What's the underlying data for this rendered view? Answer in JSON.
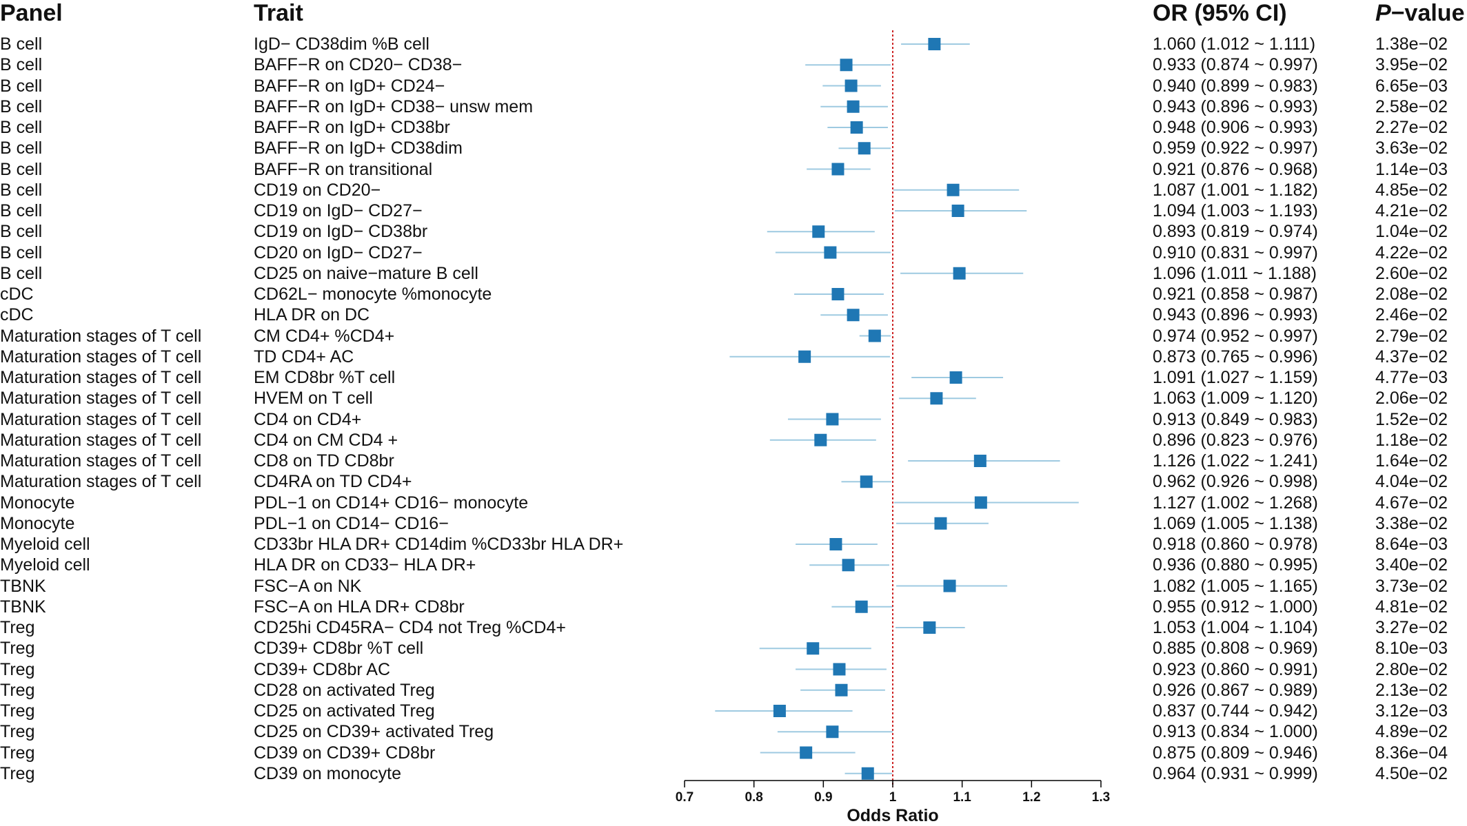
{
  "headers": {
    "panel": "Panel",
    "trait": "Trait",
    "or_ci": "OR (95% CI)",
    "pvalue_p": "P",
    "pvalue_rest": "−value"
  },
  "colors": {
    "marker": "#1f77b4",
    "ci_line": "#9ecae1",
    "reference_line": "#cc2222",
    "axis": "#000000"
  },
  "chart_data": {
    "type": "forest",
    "xlabel": "Odds Ratio",
    "xlim": [
      0.7,
      1.3
    ],
    "xticks": [
      "0.7",
      "0.8",
      "0.9",
      "1",
      "1.1",
      "1.2",
      "1.3"
    ],
    "xtick_values": [
      0.7,
      0.8,
      0.9,
      1.0,
      1.1,
      1.2,
      1.3
    ],
    "reference_value": 1,
    "rows": [
      {
        "panel": "B cell",
        "trait": "IgD− CD38dim %B cell",
        "or": 1.06,
        "lo": 1.012,
        "hi": 1.111,
        "or_text": "1.060 (1.012 ~ 1.111)",
        "p": "1.38e−02"
      },
      {
        "panel": "B cell",
        "trait": "BAFF−R on CD20− CD38−",
        "or": 0.933,
        "lo": 0.874,
        "hi": 0.997,
        "or_text": "0.933 (0.874 ~ 0.997)",
        "p": "3.95e−02"
      },
      {
        "panel": "B cell",
        "trait": "BAFF−R on IgD+ CD24−",
        "or": 0.94,
        "lo": 0.899,
        "hi": 0.983,
        "or_text": "0.940 (0.899 ~ 0.983)",
        "p": "6.65e−03"
      },
      {
        "panel": "B cell",
        "trait": "BAFF−R on IgD+ CD38− unsw mem",
        "or": 0.943,
        "lo": 0.896,
        "hi": 0.993,
        "or_text": "0.943 (0.896 ~ 0.993)",
        "p": "2.58e−02"
      },
      {
        "panel": "B cell",
        "trait": "BAFF−R on IgD+ CD38br",
        "or": 0.948,
        "lo": 0.906,
        "hi": 0.993,
        "or_text": "0.948 (0.906 ~ 0.993)",
        "p": "2.27e−02"
      },
      {
        "panel": "B cell",
        "trait": "BAFF−R on IgD+ CD38dim",
        "or": 0.959,
        "lo": 0.922,
        "hi": 0.997,
        "or_text": "0.959 (0.922 ~ 0.997)",
        "p": "3.63e−02"
      },
      {
        "panel": "B cell",
        "trait": "BAFF−R on transitional",
        "or": 0.921,
        "lo": 0.876,
        "hi": 0.968,
        "or_text": "0.921 (0.876 ~ 0.968)",
        "p": "1.14e−03"
      },
      {
        "panel": "B cell",
        "trait": "CD19 on CD20−",
        "or": 1.087,
        "lo": 1.001,
        "hi": 1.182,
        "or_text": "1.087 (1.001 ~ 1.182)",
        "p": "4.85e−02"
      },
      {
        "panel": "B cell",
        "trait": "CD19 on IgD− CD27−",
        "or": 1.094,
        "lo": 1.003,
        "hi": 1.193,
        "or_text": "1.094 (1.003 ~ 1.193)",
        "p": "4.21e−02"
      },
      {
        "panel": "B cell",
        "trait": "CD19 on IgD− CD38br",
        "or": 0.893,
        "lo": 0.819,
        "hi": 0.974,
        "or_text": "0.893 (0.819 ~ 0.974)",
        "p": "1.04e−02"
      },
      {
        "panel": "B cell",
        "trait": "CD20 on IgD− CD27−",
        "or": 0.91,
        "lo": 0.831,
        "hi": 0.997,
        "or_text": "0.910 (0.831 ~ 0.997)",
        "p": "4.22e−02"
      },
      {
        "panel": "B cell",
        "trait": "CD25 on naive−mature B cell",
        "or": 1.096,
        "lo": 1.011,
        "hi": 1.188,
        "or_text": "1.096 (1.011 ~ 1.188)",
        "p": "2.60e−02"
      },
      {
        "panel": "cDC",
        "trait": "CD62L− monocyte %monocyte",
        "or": 0.921,
        "lo": 0.858,
        "hi": 0.987,
        "or_text": "0.921 (0.858 ~ 0.987)",
        "p": "2.08e−02"
      },
      {
        "panel": "cDC",
        "trait": "HLA DR on DC",
        "or": 0.943,
        "lo": 0.896,
        "hi": 0.993,
        "or_text": "0.943 (0.896 ~ 0.993)",
        "p": "2.46e−02"
      },
      {
        "panel": "Maturation stages of T cell",
        "trait": "CM CD4+ %CD4+",
        "or": 0.974,
        "lo": 0.952,
        "hi": 0.997,
        "or_text": "0.974 (0.952 ~ 0.997)",
        "p": "2.79e−02"
      },
      {
        "panel": "Maturation stages of T cell",
        "trait": "TD CD4+ AC",
        "or": 0.873,
        "lo": 0.765,
        "hi": 0.996,
        "or_text": "0.873 (0.765 ~ 0.996)",
        "p": "4.37e−02"
      },
      {
        "panel": "Maturation stages of T cell",
        "trait": "EM CD8br %T cell",
        "or": 1.091,
        "lo": 1.027,
        "hi": 1.159,
        "or_text": "1.091 (1.027 ~ 1.159)",
        "p": "4.77e−03"
      },
      {
        "panel": "Maturation stages of T cell",
        "trait": "HVEM on T cell",
        "or": 1.063,
        "lo": 1.009,
        "hi": 1.12,
        "or_text": "1.063 (1.009 ~ 1.120)",
        "p": "2.06e−02"
      },
      {
        "panel": "Maturation stages of T cell",
        "trait": "CD4 on CD4+",
        "or": 0.913,
        "lo": 0.849,
        "hi": 0.983,
        "or_text": "0.913 (0.849 ~ 0.983)",
        "p": "1.52e−02"
      },
      {
        "panel": "Maturation stages of T cell",
        "trait": "CD4 on CM CD4 +",
        "or": 0.896,
        "lo": 0.823,
        "hi": 0.976,
        "or_text": "0.896 (0.823 ~ 0.976)",
        "p": "1.18e−02"
      },
      {
        "panel": "Maturation stages of T cell",
        "trait": "CD8 on TD CD8br",
        "or": 1.126,
        "lo": 1.022,
        "hi": 1.241,
        "or_text": "1.126 (1.022 ~ 1.241)",
        "p": "1.64e−02"
      },
      {
        "panel": "Maturation stages of T cell",
        "trait": "CD4RA on TD CD4+",
        "or": 0.962,
        "lo": 0.926,
        "hi": 0.998,
        "or_text": "0.962 (0.926 ~ 0.998)",
        "p": "4.04e−02"
      },
      {
        "panel": "Monocyte",
        "trait": "PDL−1 on CD14+ CD16− monocyte",
        "or": 1.127,
        "lo": 1.002,
        "hi": 1.268,
        "or_text": "1.127 (1.002 ~ 1.268)",
        "p": "4.67e−02"
      },
      {
        "panel": "Monocyte",
        "trait": "PDL−1 on CD14− CD16−",
        "or": 1.069,
        "lo": 1.005,
        "hi": 1.138,
        "or_text": "1.069 (1.005 ~ 1.138)",
        "p": "3.38e−02"
      },
      {
        "panel": "Myeloid cell",
        "trait": "CD33br HLA DR+ CD14dim %CD33br HLA DR+",
        "or": 0.918,
        "lo": 0.86,
        "hi": 0.978,
        "or_text": "0.918 (0.860 ~ 0.978)",
        "p": "8.64e−03"
      },
      {
        "panel": "Myeloid cell",
        "trait": "HLA DR on CD33− HLA DR+",
        "or": 0.936,
        "lo": 0.88,
        "hi": 0.995,
        "or_text": "0.936 (0.880 ~ 0.995)",
        "p": "3.40e−02"
      },
      {
        "panel": "TBNK",
        "trait": "FSC−A on NK",
        "or": 1.082,
        "lo": 1.005,
        "hi": 1.165,
        "or_text": "1.082 (1.005 ~ 1.165)",
        "p": "3.73e−02"
      },
      {
        "panel": "TBNK",
        "trait": "FSC−A on HLA DR+ CD8br",
        "or": 0.955,
        "lo": 0.912,
        "hi": 1.0,
        "or_text": "0.955 (0.912 ~ 1.000)",
        "p": "4.81e−02"
      },
      {
        "panel": "Treg",
        "trait": "CD25hi CD45RA− CD4 not Treg %CD4+",
        "or": 1.053,
        "lo": 1.004,
        "hi": 1.104,
        "or_text": "1.053 (1.004 ~ 1.104)",
        "p": "3.27e−02"
      },
      {
        "panel": "Treg",
        "trait": "CD39+ CD8br %T cell",
        "or": 0.885,
        "lo": 0.808,
        "hi": 0.969,
        "or_text": "0.885 (0.808 ~ 0.969)",
        "p": "8.10e−03"
      },
      {
        "panel": "Treg",
        "trait": "CD39+ CD8br AC",
        "or": 0.923,
        "lo": 0.86,
        "hi": 0.991,
        "or_text": "0.923 (0.860 ~ 0.991)",
        "p": "2.80e−02"
      },
      {
        "panel": "Treg",
        "trait": "CD28 on activated Treg",
        "or": 0.926,
        "lo": 0.867,
        "hi": 0.989,
        "or_text": "0.926 (0.867 ~ 0.989)",
        "p": "2.13e−02"
      },
      {
        "panel": "Treg",
        "trait": "CD25 on activated Treg",
        "or": 0.837,
        "lo": 0.744,
        "hi": 0.942,
        "or_text": "0.837 (0.744 ~ 0.942)",
        "p": "3.12e−03"
      },
      {
        "panel": "Treg",
        "trait": "CD25 on CD39+ activated Treg",
        "or": 0.913,
        "lo": 0.834,
        "hi": 1.0,
        "or_text": "0.913 (0.834 ~ 1.000)",
        "p": "4.89e−02"
      },
      {
        "panel": "Treg",
        "trait": "CD39 on CD39+ CD8br",
        "or": 0.875,
        "lo": 0.809,
        "hi": 0.946,
        "or_text": "0.875 (0.809 ~ 0.946)",
        "p": "8.36e−04"
      },
      {
        "panel": "Treg",
        "trait": "CD39 on monocyte",
        "or": 0.964,
        "lo": 0.931,
        "hi": 0.999,
        "or_text": "0.964 (0.931 ~ 0.999)",
        "p": "4.50e−02"
      }
    ]
  }
}
